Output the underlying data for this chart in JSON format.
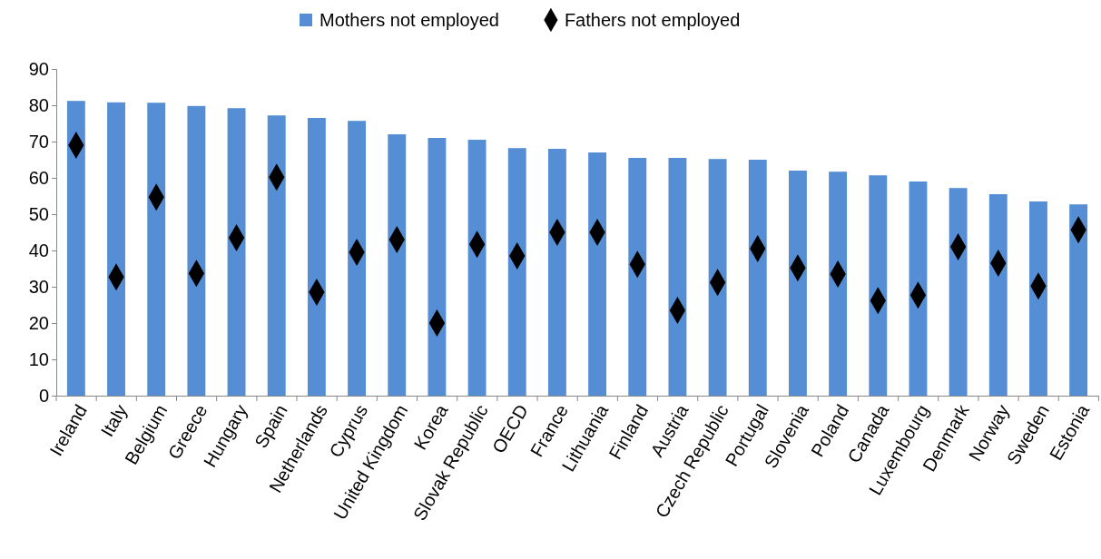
{
  "chart_data": {
    "type": "bar",
    "categories": [
      "Ireland",
      "Italy",
      "Belgium",
      "Greece",
      "Hungary",
      "Spain",
      "Netherlands",
      "Cyprus",
      "United Kingdom",
      "Korea",
      "Slovak Republic",
      "OECD",
      "France",
      "Lithuania",
      "Finland",
      "Austria",
      "Czech Republic",
      "Portugal",
      "Slovenia",
      "Poland",
      "Canada",
      "Luxembourg",
      "Denmark",
      "Norway",
      "Sweden",
      "Estonia"
    ],
    "series": [
      {
        "name": "Mothers not employed",
        "color": "#558ed5",
        "values": [
          81.2,
          80.8,
          80.7,
          79.8,
          79.2,
          77.2,
          76.5,
          75.7,
          72,
          71,
          70.5,
          68.2,
          68,
          67,
          65.5,
          65.5,
          65.2,
          65,
          62,
          61.7,
          60.7,
          59,
          57.2,
          55.5,
          53.5,
          52.7
        ]
      },
      {
        "name": "Fathers not employed",
        "type": "scatter",
        "marker": "diamond",
        "color": "#000000",
        "values": [
          69,
          32.7,
          54.7,
          33.7,
          43.5,
          60.2,
          28.5,
          39.5,
          43,
          20,
          41.7,
          38.5,
          45,
          45,
          36.2,
          23.5,
          31.2,
          40.5,
          35.2,
          33.5,
          26.2,
          27.7,
          41,
          36.5,
          30.2,
          45.7
        ]
      }
    ],
    "ylim": [
      0,
      90
    ],
    "yticks": [
      0,
      10,
      20,
      30,
      40,
      50,
      60,
      70,
      80,
      90
    ],
    "grid": false,
    "legend": "top"
  }
}
